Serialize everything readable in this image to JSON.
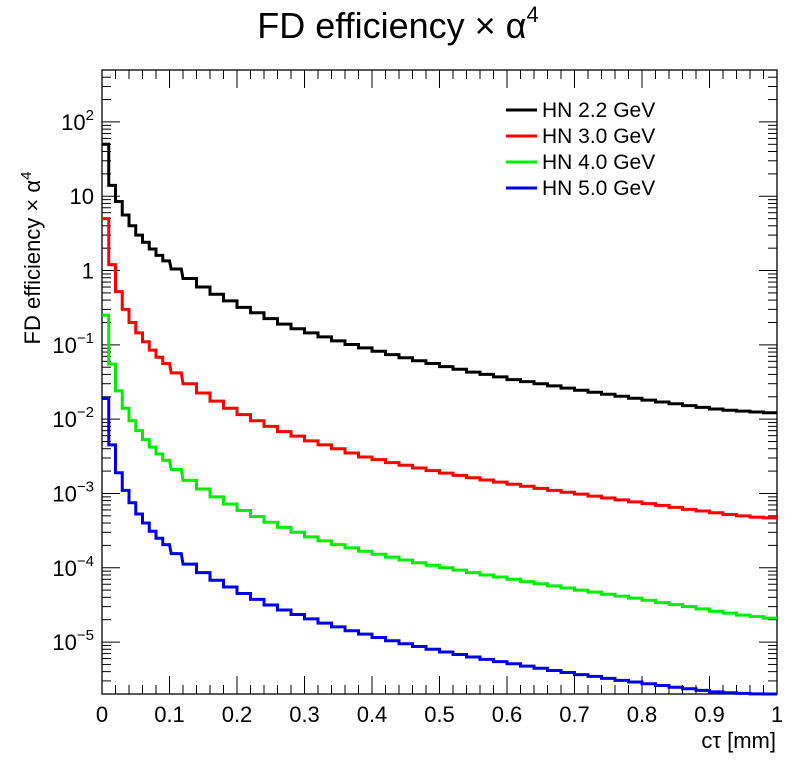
{
  "chart_data": {
    "type": "line",
    "title": "FD efficiency × α",
    "title_sup": "4",
    "xlabel": "cτ [mm]",
    "ylabel": "FD efficiency × α",
    "ylabel_sup": "4",
    "xlim": [
      0,
      1
    ],
    "ylim": [
      2e-06,
      500
    ],
    "yscale": "log",
    "grid": false,
    "legend_position": "top-right",
    "x_ticks": [
      "0",
      "0.1",
      "0.2",
      "0.3",
      "0.4",
      "0.5",
      "0.6",
      "0.7",
      "0.8",
      "0.9",
      "1"
    ],
    "y_ticks": [
      {
        "base": "10",
        "exp": "2"
      },
      {
        "base": "10",
        "exp": ""
      },
      {
        "base": "1",
        "exp": ""
      },
      {
        "base": "10",
        "exp": "−1"
      },
      {
        "base": "10",
        "exp": "−2"
      },
      {
        "base": "10",
        "exp": "−3"
      },
      {
        "base": "10",
        "exp": "−4"
      },
      {
        "base": "10",
        "exp": "−5"
      }
    ],
    "x": [
      0.005,
      0.015,
      0.025,
      0.035,
      0.045,
      0.055,
      0.065,
      0.075,
      0.085,
      0.095,
      0.11,
      0.13,
      0.15,
      0.17,
      0.19,
      0.21,
      0.23,
      0.25,
      0.27,
      0.29,
      0.31,
      0.33,
      0.35,
      0.37,
      0.39,
      0.41,
      0.43,
      0.45,
      0.47,
      0.49,
      0.51,
      0.53,
      0.55,
      0.57,
      0.59,
      0.61,
      0.63,
      0.65,
      0.67,
      0.69,
      0.71,
      0.73,
      0.75,
      0.77,
      0.79,
      0.81,
      0.83,
      0.85,
      0.87,
      0.89,
      0.91,
      0.93,
      0.95,
      0.97,
      0.99
    ],
    "series": [
      {
        "name": "HN 2.2 GeV",
        "color": "#000000",
        "values": [
          50,
          14,
          8.5,
          5.6,
          4.0,
          3.0,
          2.4,
          1.95,
          1.6,
          1.35,
          1.05,
          0.78,
          0.6,
          0.48,
          0.39,
          0.32,
          0.27,
          0.225,
          0.19,
          0.165,
          0.145,
          0.128,
          0.113,
          0.101,
          0.091,
          0.082,
          0.074,
          0.067,
          0.061,
          0.056,
          0.051,
          0.047,
          0.043,
          0.04,
          0.037,
          0.034,
          0.032,
          0.03,
          0.028,
          0.0262,
          0.0245,
          0.023,
          0.0216,
          0.0203,
          0.0191,
          0.018,
          0.017,
          0.0161,
          0.0152,
          0.0144,
          0.0137,
          0.0132,
          0.0128,
          0.0125,
          0.0122
        ]
      },
      {
        "name": "HN 3.0 GeV",
        "color": "#ff0000",
        "values": [
          5.0,
          1.2,
          0.52,
          0.3,
          0.2,
          0.145,
          0.11,
          0.085,
          0.068,
          0.056,
          0.042,
          0.03,
          0.0225,
          0.0175,
          0.014,
          0.0115,
          0.0095,
          0.008,
          0.0068,
          0.0059,
          0.0051,
          0.0045,
          0.004,
          0.0035,
          0.0031,
          0.00285,
          0.0026,
          0.0024,
          0.0022,
          0.00203,
          0.00188,
          0.00175,
          0.00163,
          0.00152,
          0.00142,
          0.00133,
          0.00125,
          0.00117,
          0.0011,
          0.00104,
          0.00098,
          0.00092,
          0.00087,
          0.00082,
          0.00077,
          0.00073,
          0.00069,
          0.00065,
          0.00061,
          0.00058,
          0.00055,
          0.00052,
          0.0005,
          0.00048,
          0.00047
        ]
      },
      {
        "name": "HN 4.0 GeV",
        "color": "#00ee00",
        "values": [
          0.25,
          0.055,
          0.024,
          0.014,
          0.0095,
          0.007,
          0.0053,
          0.0042,
          0.0034,
          0.0028,
          0.0021,
          0.0015,
          0.00115,
          0.0009,
          0.00072,
          0.00059,
          0.00049,
          0.00041,
          0.00035,
          0.0003,
          0.00026,
          0.00023,
          0.000205,
          0.000185,
          0.000167,
          0.000152,
          0.000139,
          0.000127,
          0.000117,
          0.000108,
          0.0001,
          9.3e-05,
          8.6e-05,
          8e-05,
          7.5e-05,
          7e-05,
          6.5e-05,
          6.1e-05,
          5.7e-05,
          5.35e-05,
          5e-05,
          4.7e-05,
          4.4e-05,
          4.15e-05,
          3.9e-05,
          3.65e-05,
          3.4e-05,
          3.2e-05,
          3e-05,
          2.8e-05,
          2.6e-05,
          2.45e-05,
          2.3e-05,
          2.2e-05,
          2.1e-05
        ]
      },
      {
        "name": "HN 5.0 GeV",
        "color": "#0000ee",
        "values": [
          0.019,
          0.0045,
          0.0019,
          0.0011,
          0.00075,
          0.00053,
          0.0004,
          0.00031,
          0.00025,
          0.000205,
          0.000155,
          0.000112,
          8.6e-05,
          6.8e-05,
          5.5e-05,
          4.5e-05,
          3.75e-05,
          3.15e-05,
          2.7e-05,
          2.35e-05,
          2.05e-05,
          1.8e-05,
          1.6e-05,
          1.42e-05,
          1.28e-05,
          1.15e-05,
          1.04e-05,
          9.5e-06,
          8.7e-06,
          8e-06,
          7.35e-06,
          6.8e-06,
          6.3e-06,
          5.85e-06,
          5.45e-06,
          5.1e-06,
          4.75e-06,
          4.45e-06,
          4.15e-06,
          3.9e-06,
          3.65e-06,
          3.45e-06,
          3.25e-06,
          3.05e-06,
          2.9e-06,
          2.75e-06,
          2.6e-06,
          2.47e-06,
          2.35e-06,
          2.24e-06,
          2.14e-06,
          2.08e-06,
          2.04e-06,
          2.01e-06,
          2e-06
        ]
      }
    ]
  }
}
